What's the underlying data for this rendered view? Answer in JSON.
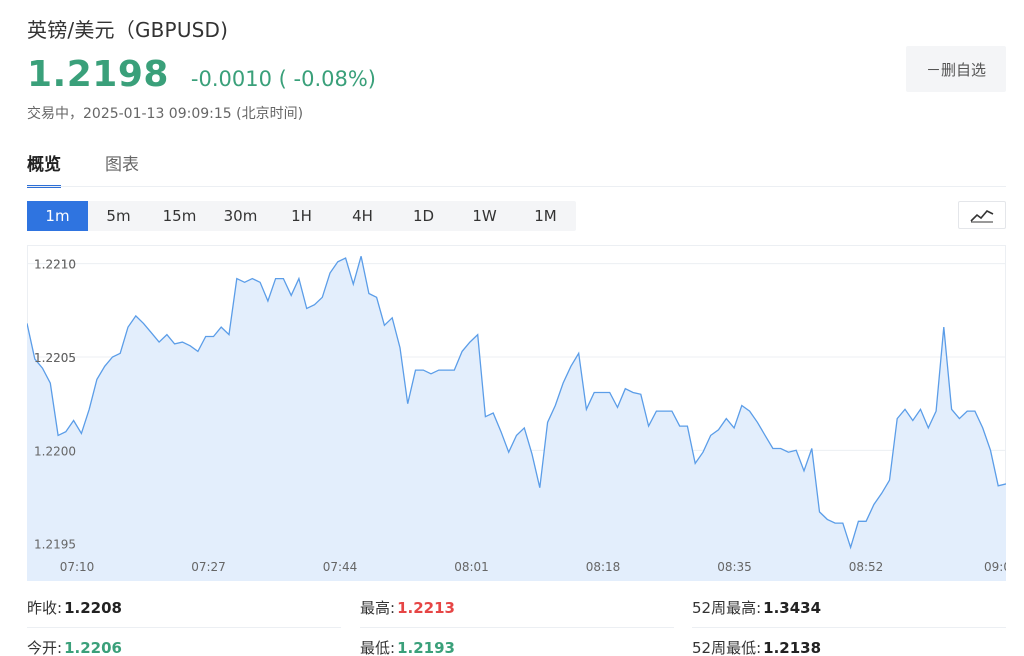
{
  "header": {
    "title": "英镑/美元（GBPUSD)",
    "price": "1.2198",
    "change": "-0.0010 ( -0.08%)",
    "status": "交易中，2025-01-13 09:09:15 (北京时间)",
    "watch_button": "－删自选"
  },
  "tabs": [
    {
      "label": "概览",
      "active": true
    },
    {
      "label": "图表",
      "active": false
    }
  ],
  "periods": [
    {
      "label": "1m",
      "active": true
    },
    {
      "label": "5m"
    },
    {
      "label": "15m"
    },
    {
      "label": "30m"
    },
    {
      "label": "1H"
    },
    {
      "label": "4H"
    },
    {
      "label": "1D"
    },
    {
      "label": "1W"
    },
    {
      "label": "1M"
    }
  ],
  "chart_type_icon": "line-chart-icon",
  "colors": {
    "up": "#e64545",
    "down": "#3aa07a",
    "accent": "#2f74e0",
    "line": "#5b9de8",
    "fill": "#e3eefc"
  },
  "chart_data": {
    "type": "area",
    "x_ticks": [
      "07:10",
      "07:27",
      "07:44",
      "08:01",
      "08:18",
      "08:35",
      "08:52",
      "09:0"
    ],
    "y_ticks": [
      "1.2210",
      "1.2205",
      "1.2200",
      "1.2195"
    ],
    "ylim": [
      1.2193,
      1.2211
    ],
    "grid": true,
    "values": [
      1.22068,
      1.22049,
      1.22044,
      1.22036,
      1.22008,
      1.2201,
      1.22016,
      1.22009,
      1.22022,
      1.22038,
      1.22045,
      1.2205,
      1.22052,
      1.22066,
      1.22072,
      1.22068,
      1.22063,
      1.22058,
      1.22062,
      1.22057,
      1.22058,
      1.22056,
      1.22053,
      1.22061,
      1.22061,
      1.22066,
      1.22062,
      1.22092,
      1.2209,
      1.22092,
      1.2209,
      1.2208,
      1.22092,
      1.22092,
      1.22083,
      1.22092,
      1.22076,
      1.22078,
      1.22082,
      1.22095,
      1.22101,
      1.22103,
      1.22089,
      1.22104,
      1.22084,
      1.22082,
      1.22067,
      1.22071,
      1.22055,
      1.22025,
      1.22043,
      1.22043,
      1.22041,
      1.22043,
      1.22043,
      1.22043,
      1.22053,
      1.22058,
      1.22062,
      1.22018,
      1.2202,
      1.2201,
      1.21999,
      1.22008,
      1.22012,
      1.21998,
      1.2198,
      1.22015,
      1.22024,
      1.22036,
      1.22045,
      1.22052,
      1.22022,
      1.22031,
      1.22031,
      1.22031,
      1.22023,
      1.22033,
      1.22031,
      1.2203,
      1.22013,
      1.22021,
      1.22021,
      1.22021,
      1.22013,
      1.22013,
      1.21993,
      1.21999,
      1.22008,
      1.22011,
      1.22017,
      1.22012,
      1.22024,
      1.22021,
      1.22015,
      1.22008,
      1.22001,
      1.22001,
      1.21999,
      1.22,
      1.21989,
      1.22001,
      1.21967,
      1.21963,
      1.21961,
      1.21961,
      1.21948,
      1.21962,
      1.21962,
      1.21971,
      1.21977,
      1.21984,
      1.22017,
      1.22022,
      1.22016,
      1.22022,
      1.22012,
      1.22021,
      1.22066,
      1.22022,
      1.22017,
      1.22021,
      1.22021,
      1.22012,
      1.22,
      1.21981,
      1.21982
    ]
  },
  "stats": {
    "prev_close": {
      "label": "昨收:",
      "value": "1.2208"
    },
    "open": {
      "label": "今开:",
      "value": "1.2206"
    },
    "high": {
      "label": "最高:",
      "value": "1.2213"
    },
    "low": {
      "label": "最低:",
      "value": "1.2193"
    },
    "w52_high": {
      "label": "52周最高:",
      "value": "1.3434"
    },
    "w52_low": {
      "label": "52周最低:",
      "value": "1.2138"
    }
  }
}
